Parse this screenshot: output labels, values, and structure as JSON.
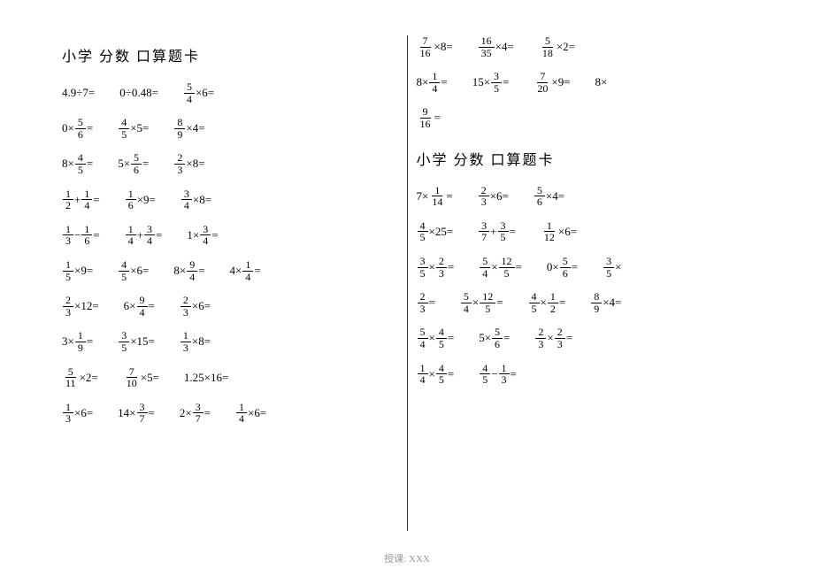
{
  "footer": "授课: XXX",
  "titles": {
    "left": "小学  分数  口算题卡",
    "rightTop": "",
    "rightBottom": "小学  分数  口算题卡"
  },
  "colors": {
    "text": "#000000",
    "bg": "#ffffff",
    "footer": "#999999",
    "rule": "#333333"
  },
  "fontSizes": {
    "title": 16,
    "body": 13,
    "footer": 11
  },
  "left": [
    [
      {
        "t": "plain",
        "s": "4.9÷7="
      },
      {
        "t": "plain",
        "s": "0÷0.48="
      },
      {
        "t": "fx",
        "parts": [
          {
            "f": [
              5,
              4
            ]
          },
          {
            "s": "×6="
          }
        ]
      }
    ],
    [
      {
        "t": "fx",
        "parts": [
          {
            "s": "0×"
          },
          {
            "f": [
              5,
              6
            ]
          },
          {
            "s": "="
          }
        ]
      },
      {
        "t": "fx",
        "parts": [
          {
            "f": [
              4,
              5
            ]
          },
          {
            "s": "×5="
          }
        ]
      },
      {
        "t": "fx",
        "parts": [
          {
            "f": [
              8,
              9
            ]
          },
          {
            "s": "×4="
          }
        ]
      }
    ],
    [
      {
        "t": "fx",
        "parts": [
          {
            "s": "8×"
          },
          {
            "f": [
              4,
              5
            ]
          },
          {
            "s": "="
          }
        ]
      },
      {
        "t": "fx",
        "parts": [
          {
            "s": "5×"
          },
          {
            "f": [
              5,
              6
            ]
          },
          {
            "s": "="
          }
        ]
      },
      {
        "t": "fx",
        "parts": [
          {
            "f": [
              2,
              3
            ]
          },
          {
            "s": "×8="
          }
        ]
      }
    ],
    [
      {
        "t": "fx",
        "parts": [
          {
            "f": [
              1,
              2
            ]
          },
          {
            "s": "+"
          },
          {
            "f": [
              1,
              4
            ]
          },
          {
            "s": "="
          }
        ]
      },
      {
        "t": "fx",
        "parts": [
          {
            "f": [
              1,
              6
            ]
          },
          {
            "s": "×9="
          }
        ]
      },
      {
        "t": "fx",
        "parts": [
          {
            "f": [
              3,
              4
            ]
          },
          {
            "s": "×8="
          }
        ]
      }
    ],
    [
      {
        "t": "fx",
        "parts": [
          {
            "f": [
              1,
              3
            ]
          },
          {
            "s": "−"
          },
          {
            "f": [
              1,
              6
            ]
          },
          {
            "s": "="
          }
        ]
      },
      {
        "t": "fx",
        "parts": [
          {
            "f": [
              1,
              4
            ]
          },
          {
            "s": "+"
          },
          {
            "f": [
              3,
              4
            ]
          },
          {
            "s": "="
          }
        ]
      },
      {
        "t": "fx",
        "parts": [
          {
            "s": "1×"
          },
          {
            "f": [
              3,
              4
            ]
          },
          {
            "s": "="
          }
        ]
      }
    ],
    [
      {
        "t": "fx",
        "parts": [
          {
            "f": [
              1,
              5
            ]
          },
          {
            "s": "×9="
          }
        ]
      },
      {
        "t": "fx",
        "parts": [
          {
            "f": [
              4,
              5
            ]
          },
          {
            "s": "×6="
          }
        ]
      },
      {
        "t": "fx",
        "parts": [
          {
            "s": "8×"
          },
          {
            "f": [
              9,
              4
            ]
          },
          {
            "s": "="
          }
        ]
      },
      {
        "t": "fx",
        "parts": [
          {
            "s": "4×"
          },
          {
            "f": [
              1,
              4
            ]
          },
          {
            "s": "="
          }
        ]
      }
    ],
    [
      {
        "t": "fx",
        "parts": [
          {
            "f": [
              2,
              3
            ]
          },
          {
            "s": "×12="
          }
        ]
      },
      {
        "t": "fx",
        "parts": [
          {
            "s": "6×"
          },
          {
            "f": [
              9,
              4
            ]
          },
          {
            "s": "="
          }
        ]
      },
      {
        "t": "fx",
        "parts": [
          {
            "f": [
              2,
              3
            ]
          },
          {
            "s": "×6="
          }
        ]
      }
    ],
    [
      {
        "t": "fx",
        "parts": [
          {
            "s": "3×"
          },
          {
            "f": [
              1,
              9
            ]
          },
          {
            "s": "="
          }
        ]
      },
      {
        "t": "fx",
        "parts": [
          {
            "f": [
              3,
              5
            ]
          },
          {
            "s": "×15="
          }
        ]
      },
      {
        "t": "fx",
        "parts": [
          {
            "f": [
              1,
              3
            ]
          },
          {
            "s": "×8="
          }
        ]
      }
    ],
    [
      {
        "t": "fx",
        "parts": [
          {
            "f": [
              5,
              11
            ]
          },
          {
            "s": "×2="
          }
        ]
      },
      {
        "t": "fx",
        "parts": [
          {
            "f": [
              7,
              10
            ]
          },
          {
            "s": "×5="
          }
        ]
      },
      {
        "t": "plain",
        "s": "1.25×16="
      }
    ],
    [
      {
        "t": "fx",
        "parts": [
          {
            "f": [
              1,
              3
            ]
          },
          {
            "s": "×6="
          }
        ]
      },
      {
        "t": "fx",
        "parts": [
          {
            "s": "14×"
          },
          {
            "f": [
              3,
              7
            ]
          },
          {
            "s": "="
          }
        ]
      },
      {
        "t": "fx",
        "parts": [
          {
            "s": "2×"
          },
          {
            "f": [
              3,
              7
            ]
          },
          {
            "s": "="
          }
        ]
      },
      {
        "t": "fx",
        "parts": [
          {
            "f": [
              1,
              4
            ]
          },
          {
            "s": "×6="
          }
        ]
      }
    ]
  ],
  "rightTop": [
    [
      {
        "t": "fx",
        "parts": [
          {
            "f": [
              7,
              16
            ]
          },
          {
            "s": "×8="
          }
        ]
      },
      {
        "t": "fx",
        "parts": [
          {
            "f": [
              16,
              35
            ]
          },
          {
            "s": "×4="
          }
        ]
      },
      {
        "t": "fx",
        "parts": [
          {
            "f": [
              5,
              18
            ]
          },
          {
            "s": "×2="
          }
        ]
      }
    ],
    [
      {
        "t": "fx",
        "parts": [
          {
            "s": "8×"
          },
          {
            "f": [
              1,
              4
            ]
          },
          {
            "s": "="
          }
        ]
      },
      {
        "t": "fx",
        "parts": [
          {
            "s": "15×"
          },
          {
            "f": [
              3,
              5
            ]
          },
          {
            "s": "="
          }
        ]
      },
      {
        "t": "fx",
        "parts": [
          {
            "f": [
              7,
              20
            ]
          },
          {
            "s": "×9="
          }
        ]
      },
      {
        "t": "plain",
        "s": "8×"
      }
    ],
    [
      {
        "t": "fx",
        "parts": [
          {
            "f": [
              9,
              16
            ]
          },
          {
            "s": "="
          }
        ]
      }
    ]
  ],
  "rightBottom": [
    [
      {
        "t": "fx",
        "parts": [
          {
            "s": "7×"
          },
          {
            "f": [
              1,
              14
            ]
          },
          {
            "s": "="
          }
        ]
      },
      {
        "t": "fx",
        "parts": [
          {
            "f": [
              2,
              3
            ]
          },
          {
            "s": "×6="
          }
        ]
      },
      {
        "t": "fx",
        "parts": [
          {
            "f": [
              5,
              6
            ]
          },
          {
            "s": "×4="
          }
        ]
      }
    ],
    [
      {
        "t": "fx",
        "parts": [
          {
            "f": [
              4,
              5
            ]
          },
          {
            "s": "×25="
          }
        ]
      },
      {
        "t": "fx",
        "parts": [
          {
            "f": [
              3,
              7
            ]
          },
          {
            "s": "+"
          },
          {
            "f": [
              3,
              5
            ]
          },
          {
            "s": "="
          }
        ]
      },
      {
        "t": "fx",
        "parts": [
          {
            "f": [
              1,
              12
            ]
          },
          {
            "s": "×6="
          }
        ]
      }
    ],
    [
      {
        "t": "fx",
        "parts": [
          {
            "f": [
              3,
              5
            ]
          },
          {
            "s": "×"
          },
          {
            "f": [
              2,
              3
            ]
          },
          {
            "s": "="
          }
        ]
      },
      {
        "t": "fx",
        "parts": [
          {
            "f": [
              5,
              4
            ]
          },
          {
            "s": "×"
          },
          {
            "f": [
              12,
              5
            ]
          },
          {
            "s": "="
          }
        ]
      },
      {
        "t": "fx",
        "parts": [
          {
            "s": "0×"
          },
          {
            "f": [
              5,
              6
            ]
          },
          {
            "s": "="
          }
        ]
      },
      {
        "t": "fx",
        "parts": [
          {
            "f": [
              3,
              5
            ]
          },
          {
            "s": "×"
          }
        ]
      }
    ],
    [
      {
        "t": "fx",
        "parts": [
          {
            "f": [
              2,
              3
            ]
          },
          {
            "s": "="
          }
        ]
      },
      {
        "t": "fx",
        "parts": [
          {
            "f": [
              5,
              4
            ]
          },
          {
            "s": "×"
          },
          {
            "f": [
              12,
              5
            ]
          },
          {
            "s": "="
          }
        ]
      },
      {
        "t": "fx",
        "parts": [
          {
            "f": [
              4,
              5
            ]
          },
          {
            "s": "×"
          },
          {
            "f": [
              1,
              2
            ]
          },
          {
            "s": "="
          }
        ]
      },
      {
        "t": "fx",
        "parts": [
          {
            "f": [
              8,
              9
            ]
          },
          {
            "s": "×4="
          }
        ]
      }
    ],
    [
      {
        "t": "fx",
        "parts": [
          {
            "f": [
              5,
              4
            ]
          },
          {
            "s": "×"
          },
          {
            "f": [
              4,
              5
            ]
          },
          {
            "s": "="
          }
        ]
      },
      {
        "t": "fx",
        "parts": [
          {
            "s": "5×"
          },
          {
            "f": [
              5,
              6
            ]
          },
          {
            "s": "="
          }
        ]
      },
      {
        "t": "fx",
        "parts": [
          {
            "f": [
              2,
              3
            ]
          },
          {
            "s": "×"
          },
          {
            "f": [
              2,
              3
            ]
          },
          {
            "s": "="
          }
        ]
      }
    ],
    [
      {
        "t": "fx",
        "parts": [
          {
            "f": [
              1,
              4
            ]
          },
          {
            "s": "×"
          },
          {
            "f": [
              4,
              5
            ]
          },
          {
            "s": "="
          }
        ]
      },
      {
        "t": "fx",
        "parts": [
          {
            "f": [
              4,
              5
            ]
          },
          {
            "s": "−"
          },
          {
            "f": [
              1,
              3
            ]
          },
          {
            "s": "="
          }
        ]
      }
    ]
  ]
}
